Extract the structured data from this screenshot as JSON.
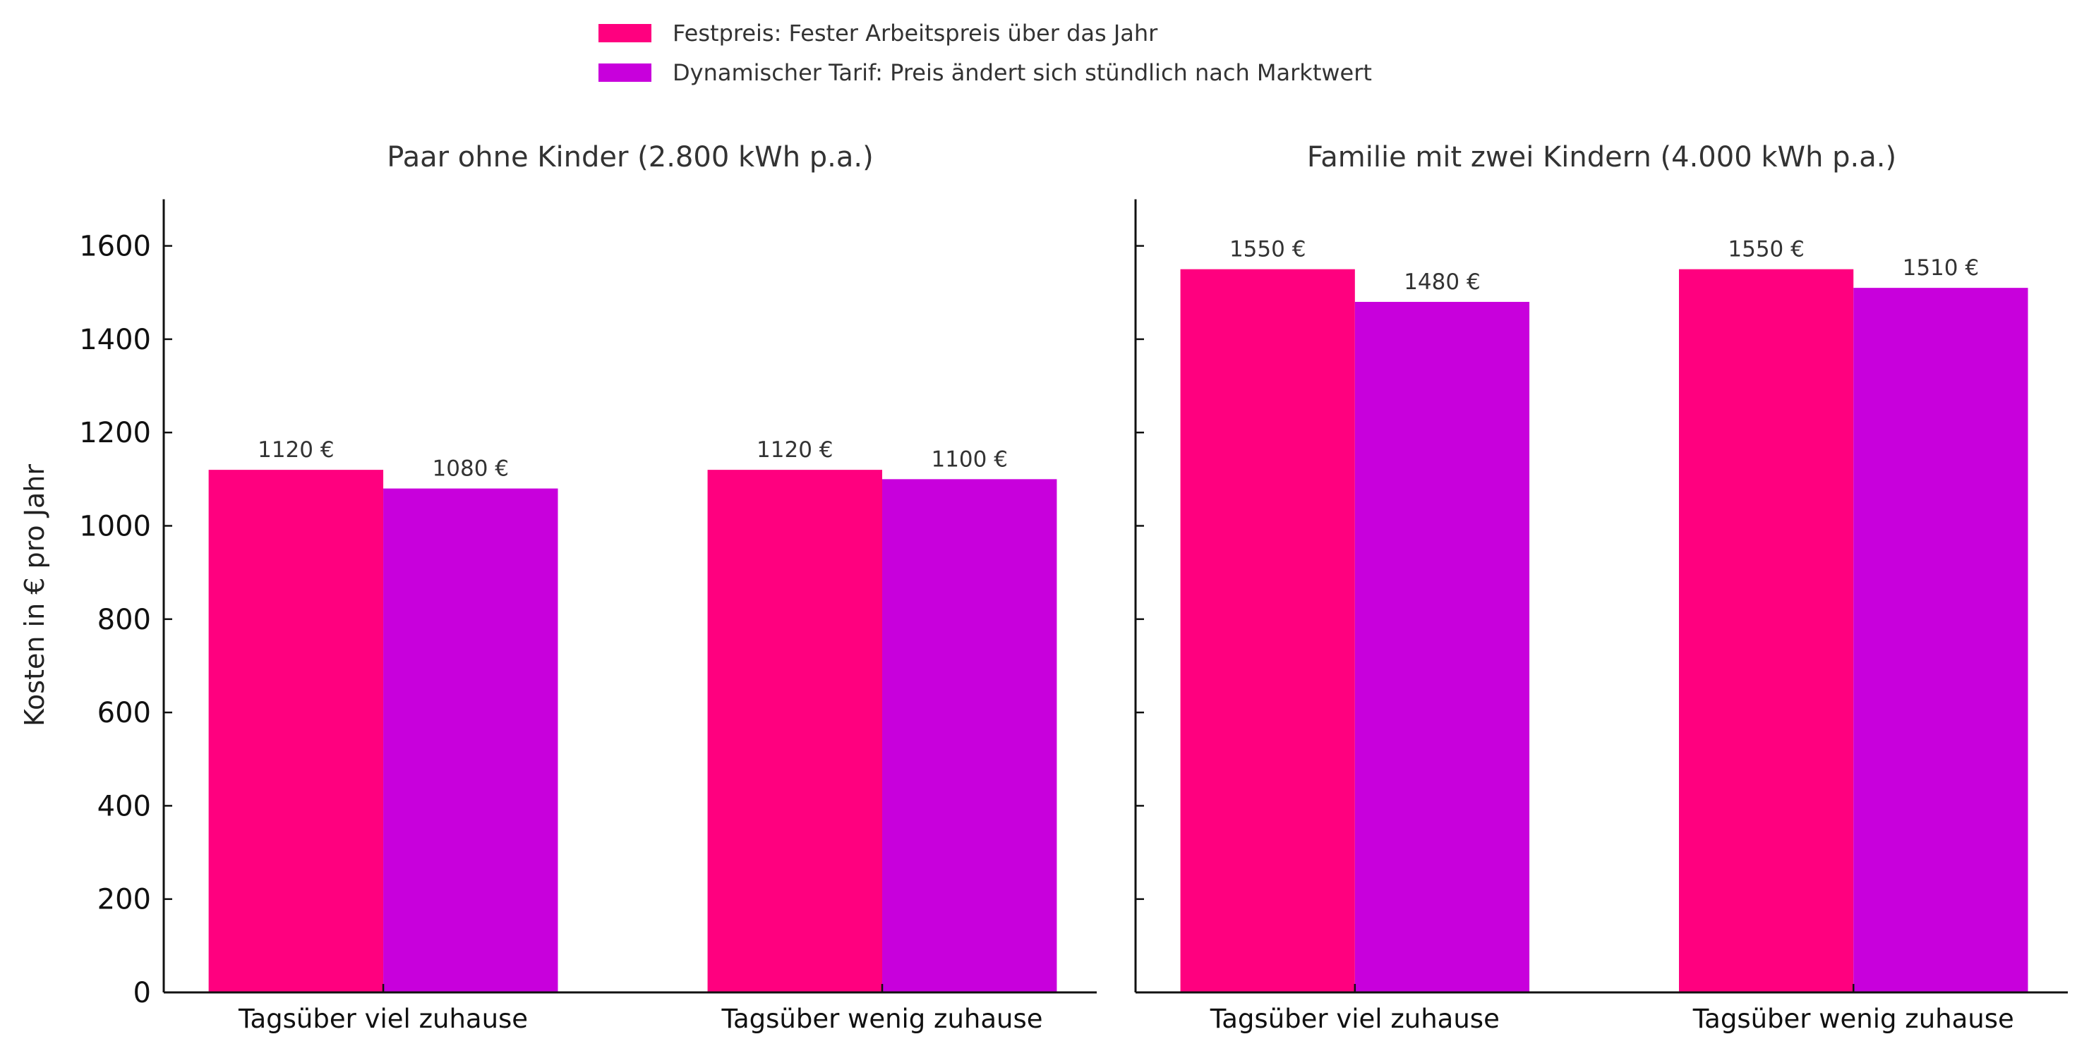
{
  "chart_data": {
    "type": "bar",
    "legend": {
      "placement": "top-center",
      "entries": [
        {
          "label": "Festpreis: Fester Arbeitspreis über das Jahr",
          "color": "#ff007f"
        },
        {
          "label": "Dynamischer Tarif: Preis ändert sich stündlich nach Marktwert",
          "color": "#c800dc"
        }
      ]
    },
    "ylabel": "Kosten in € pro Jahr",
    "ylim": [
      0,
      1700
    ],
    "yticks": [
      0,
      200,
      400,
      600,
      800,
      1000,
      1200,
      1400,
      1600
    ],
    "grid": false,
    "value_suffix": " €",
    "panels": [
      {
        "title": "Paar ohne Kinder (2.800 kWh p.a.)",
        "categories": [
          "Tagsüber viel zuhause",
          "Tagsüber wenig zuhause"
        ],
        "series": [
          {
            "name": "Festpreis",
            "values": [
              1120,
              1120
            ]
          },
          {
            "name": "Dynamischer Tarif",
            "values": [
              1080,
              1100
            ]
          }
        ]
      },
      {
        "title": "Familie mit zwei Kindern (4.000 kWh p.a.)",
        "categories": [
          "Tagsüber viel zuhause",
          "Tagsüber wenig zuhause"
        ],
        "series": [
          {
            "name": "Festpreis",
            "values": [
              1550,
              1550
            ]
          },
          {
            "name": "Dynamischer Tarif",
            "values": [
              1480,
              1510
            ]
          }
        ]
      }
    ]
  }
}
